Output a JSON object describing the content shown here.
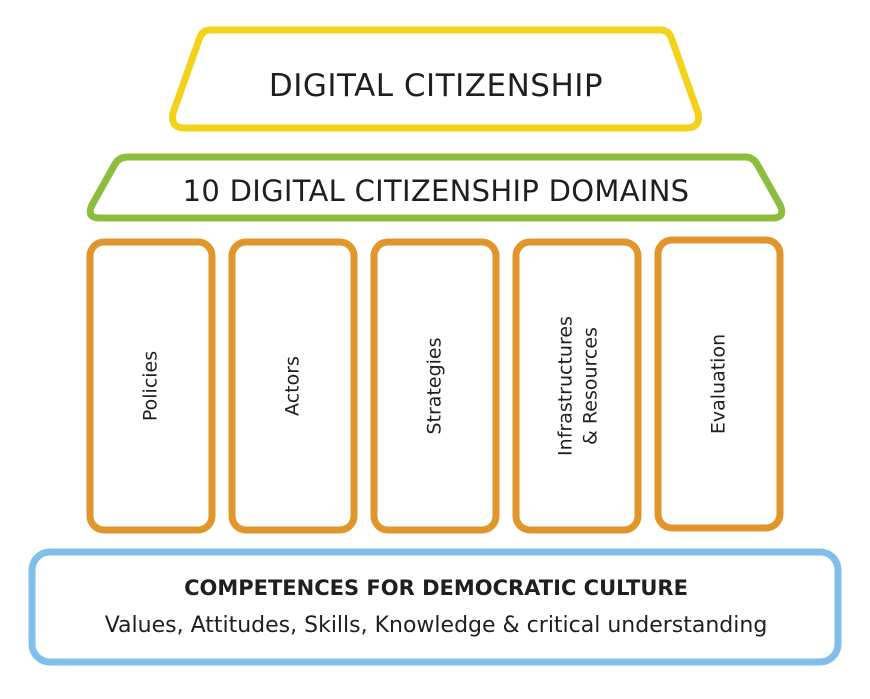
{
  "roof": {
    "title": "DIGITAL CITIZENSHIP"
  },
  "domains": {
    "title": "10 DIGITAL CITIZENSHIP DOMAINS"
  },
  "pillars": [
    {
      "lines": [
        "Policies"
      ]
    },
    {
      "lines": [
        "Actors"
      ]
    },
    {
      "lines": [
        "Strategies"
      ]
    },
    {
      "lines": [
        "Infrastructures",
        "& Resources"
      ]
    },
    {
      "lines": [
        "Evaluation"
      ]
    }
  ],
  "foundation": {
    "title": "COMPETENCES FOR DEMOCRATIC CULTURE",
    "subtitle": "Values, Attitudes, Skills, Knowledge & critical understanding"
  },
  "colors": {
    "roof": "#f2d21b",
    "domains": "#8dbd3f",
    "pillars": "#e0962a",
    "foundation": "#7fbfea",
    "text": "#1f1f1f"
  }
}
